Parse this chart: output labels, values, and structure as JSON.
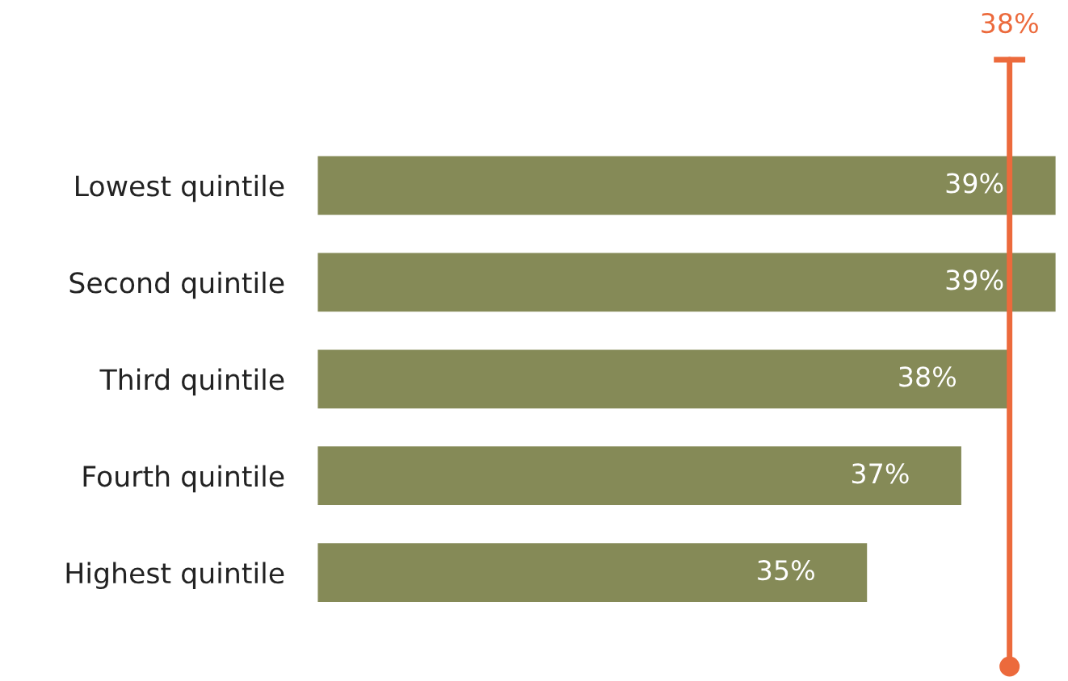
{
  "chart_data": {
    "type": "bar",
    "orientation": "horizontal",
    "categories": [
      "Lowest quintile",
      "Second quintile",
      "Third quintile",
      "Fourth quintile",
      "Highest quintile"
    ],
    "values": [
      39,
      39,
      38,
      37,
      35
    ],
    "color": "#858a57",
    "value_labels": [
      "39%",
      "39%",
      "38%",
      "37%",
      "35%"
    ],
    "xlim": [
      23.3,
      39
    ],
    "ref_lines": [
      {
        "axis": "x",
        "value": 38,
        "label": "38%",
        "color": "#ec6a3c"
      }
    ],
    "grid": false,
    "legend": false
  }
}
